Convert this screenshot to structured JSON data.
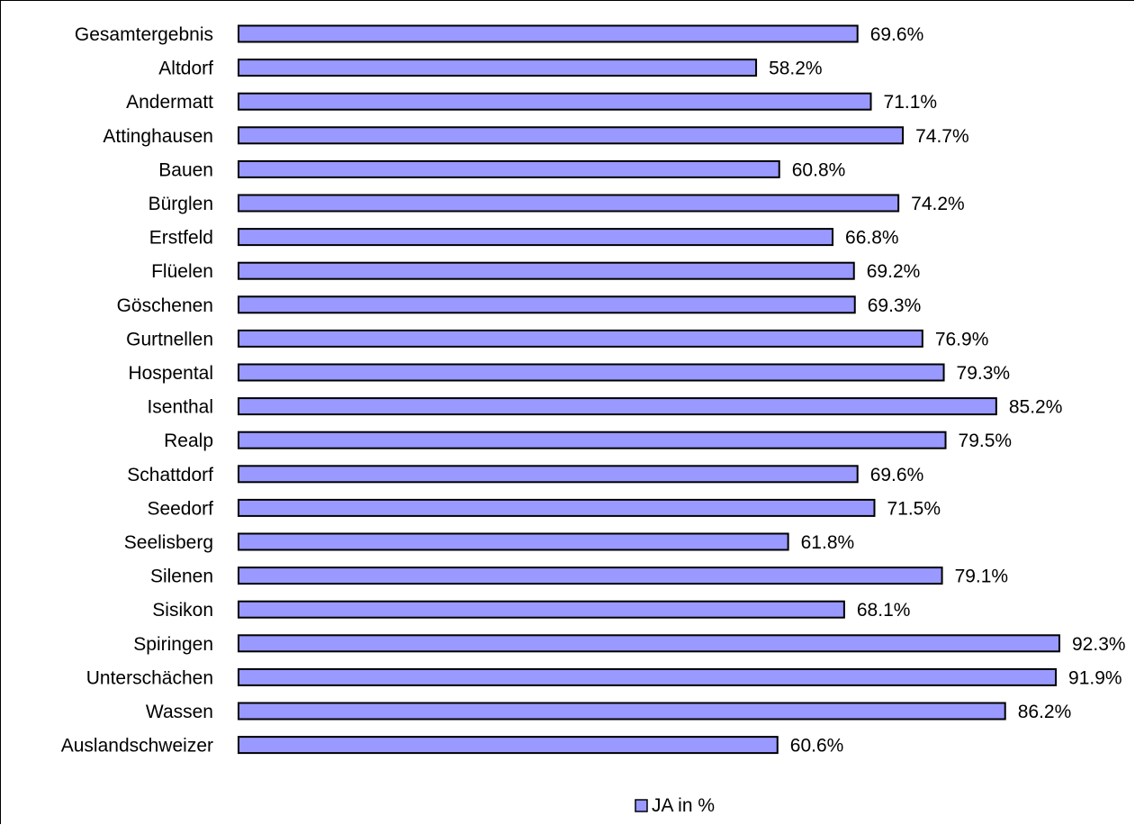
{
  "chart_data": {
    "type": "bar",
    "orientation": "horizontal",
    "categories": [
      "Gesamtergebnis",
      "Altdorf",
      "Andermatt",
      "Attinghausen",
      "Bauen",
      "Bürglen",
      "Erstfeld",
      "Flüelen",
      "Göschenen",
      "Gurtnellen",
      "Hospental",
      "Isenthal",
      "Realp",
      "Schattdorf",
      "Seedorf",
      "Seelisberg",
      "Silenen",
      "Sisikon",
      "Spiringen",
      "Unterschächen",
      "Wassen",
      "Auslandschweizer"
    ],
    "series": [
      {
        "name": "JA in %",
        "values": [
          69.6,
          58.2,
          71.1,
          74.7,
          60.8,
          74.2,
          66.8,
          69.2,
          69.3,
          76.9,
          79.3,
          85.2,
          79.5,
          69.6,
          71.5,
          61.8,
          79.1,
          68.1,
          92.3,
          91.9,
          86.2,
          60.6
        ],
        "labels": [
          "69.6%",
          "58.2%",
          "71.1%",
          "74.7%",
          "60.8%",
          "74.2%",
          "66.8%",
          "69.2%",
          "69.3%",
          "76.9%",
          "79.3%",
          "85.2%",
          "79.5%",
          "69.6%",
          "71.5%",
          "61.8%",
          "79.1%",
          "68.1%",
          "92.3%",
          "91.9%",
          "86.2%",
          "60.6%"
        ]
      }
    ],
    "xlim": [
      0,
      92.3
    ],
    "grid": false,
    "legend": "bottom",
    "colors": {
      "bar_fill": "#9999FF",
      "bar_stroke": "#000000"
    }
  }
}
